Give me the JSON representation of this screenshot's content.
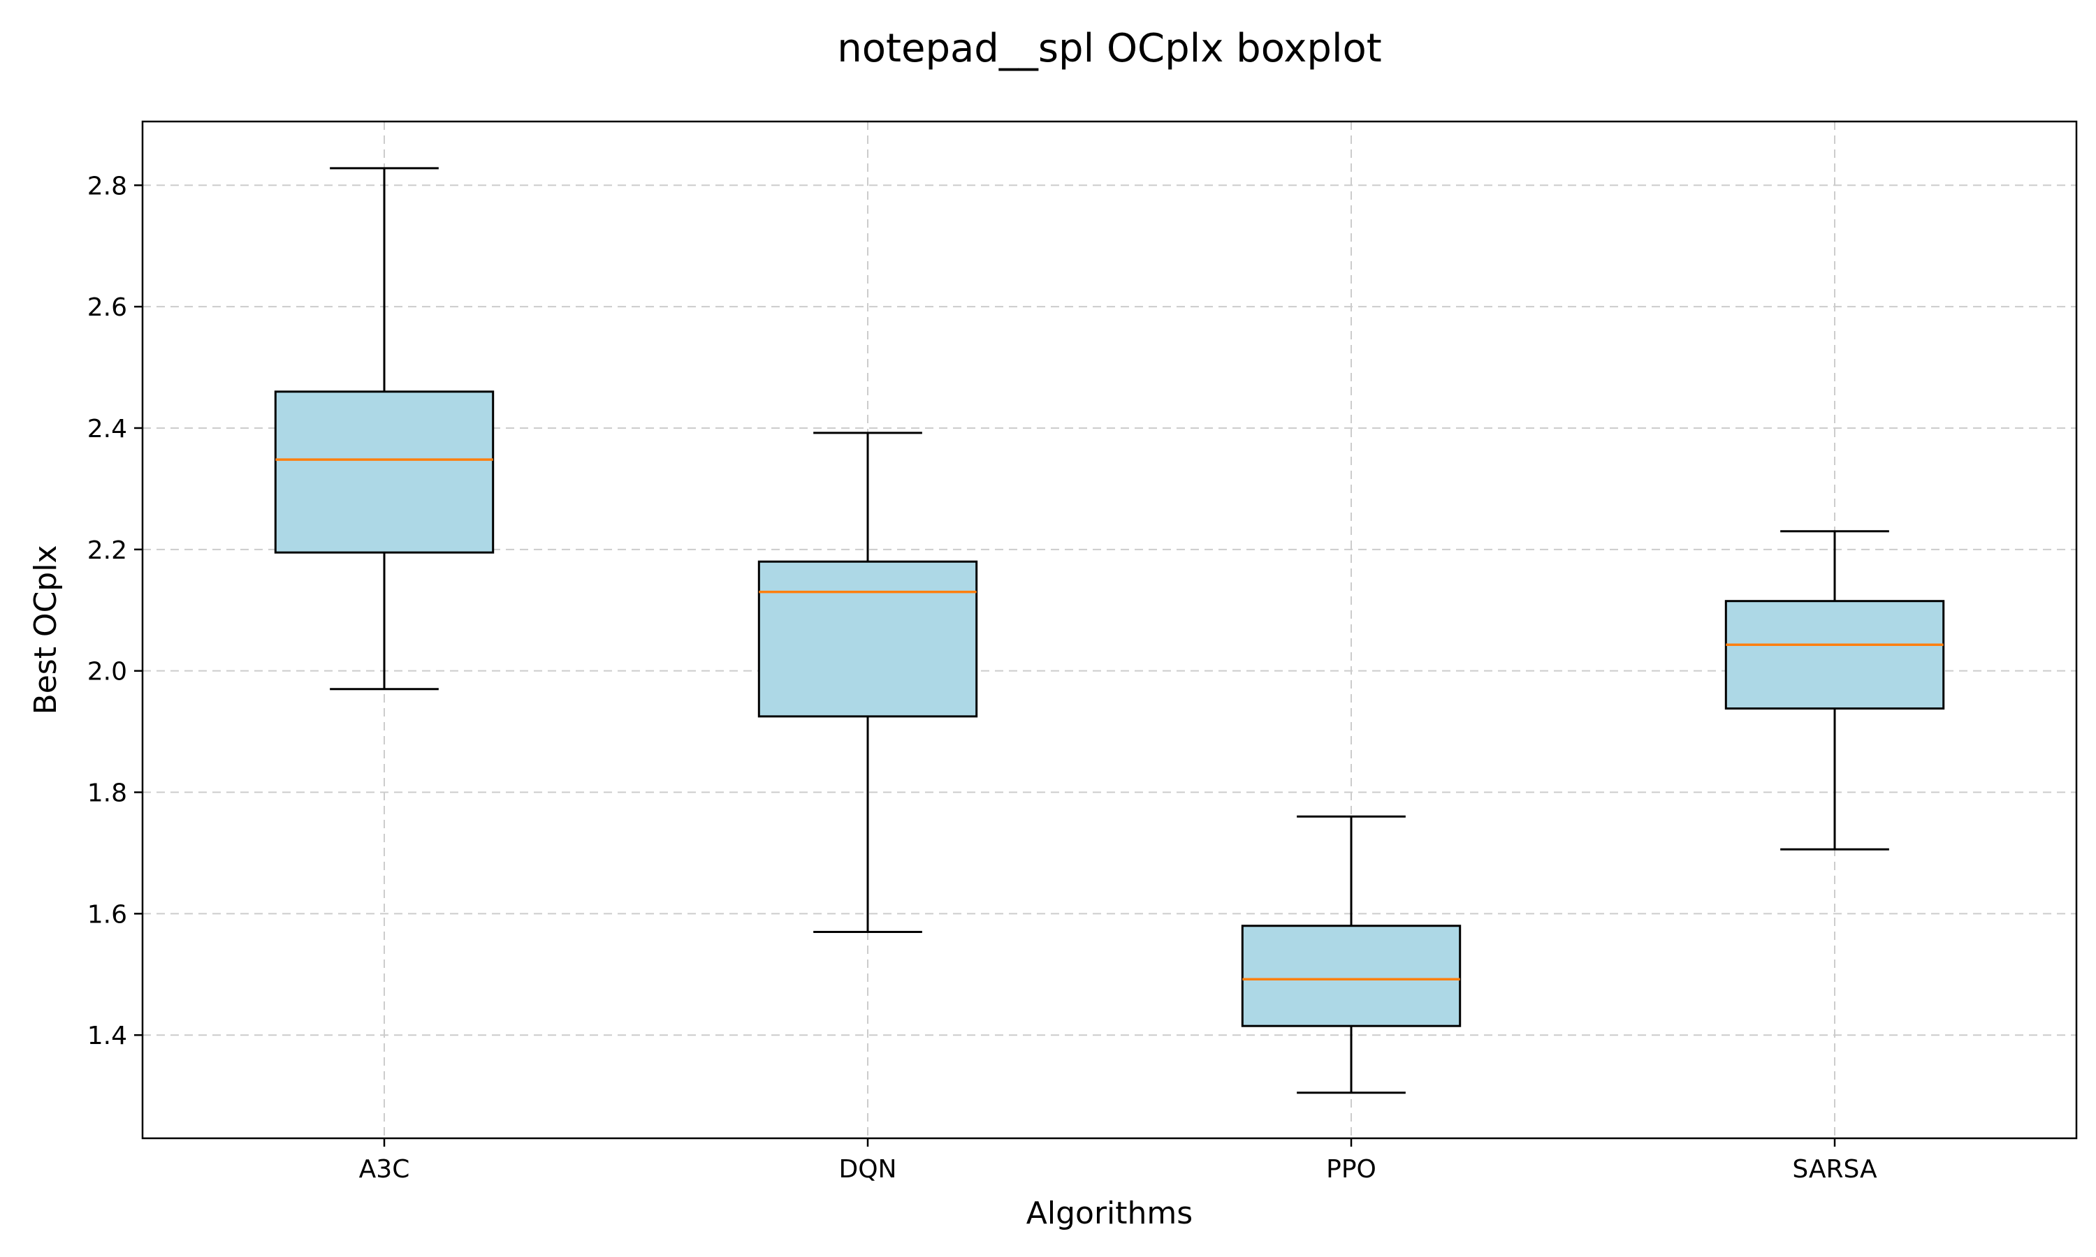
{
  "chart_data": {
    "type": "boxplot",
    "title": "notepad__spl OCplx boxplot",
    "xlabel": "Algorithms",
    "ylabel": "Best OCplx",
    "ylim": [
      1.23,
      2.905
    ],
    "yticks": [
      1.4,
      1.6,
      1.8,
      2.0,
      2.2,
      2.4,
      2.6,
      2.8
    ],
    "grid": true,
    "box_color": "#add8e6",
    "median_color": "#ff7f0e",
    "categories": [
      "A3C",
      "DQN",
      "PPO",
      "SARSA"
    ],
    "boxes": [
      {
        "name": "A3C",
        "whislo": 1.97,
        "q1": 2.195,
        "med": 2.348,
        "q3": 2.46,
        "whishi": 2.828
      },
      {
        "name": "DQN",
        "whislo": 1.57,
        "q1": 1.925,
        "med": 2.13,
        "q3": 2.18,
        "whishi": 2.392
      },
      {
        "name": "PPO",
        "whislo": 1.305,
        "q1": 1.415,
        "med": 1.492,
        "q3": 1.58,
        "whishi": 1.76
      },
      {
        "name": "SARSA",
        "whislo": 1.706,
        "q1": 1.938,
        "med": 2.043,
        "q3": 2.115,
        "whishi": 2.23
      }
    ]
  }
}
